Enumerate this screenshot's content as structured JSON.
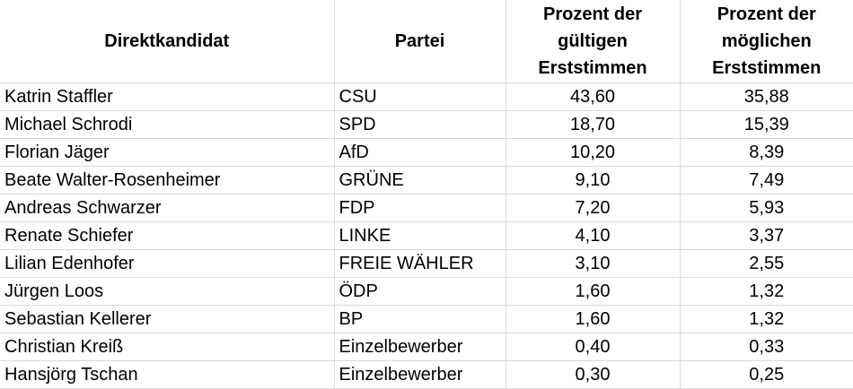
{
  "table": {
    "header": [
      "Direktkandidat",
      "Partei",
      "Prozent der gültigen Erststimmen",
      "Prozent der möglichen Erststimmen"
    ],
    "rows": [
      [
        "Katrin Staffler",
        "CSU",
        "43,60",
        "35,88"
      ],
      [
        "Michael Schrodi",
        "SPD",
        "18,70",
        "15,39"
      ],
      [
        "Florian Jäger",
        "AfD",
        "10,20",
        "8,39"
      ],
      [
        "Beate Walter-Rosenheimer",
        "GRÜNE",
        "9,10",
        "7,49"
      ],
      [
        "Andreas Schwarzer",
        "FDP",
        "7,20",
        "5,93"
      ],
      [
        "Renate Schiefer",
        "LINKE",
        "4,10",
        "3,37"
      ],
      [
        "Lilian Edenhofer",
        "FREIE WÄHLER",
        "3,10",
        "2,55"
      ],
      [
        "Jürgen Loos",
        "ÖDP",
        "1,60",
        "1,32"
      ],
      [
        "Sebastian Kellerer",
        "BP",
        "1,60",
        "1,32"
      ],
      [
        "Christian Kreiß",
        "Einzelbewerber",
        "0,40",
        "0,33"
      ],
      [
        "Hansjörg Tschan",
        "Einzelbewerber",
        "0,30",
        "0,25"
      ]
    ]
  }
}
